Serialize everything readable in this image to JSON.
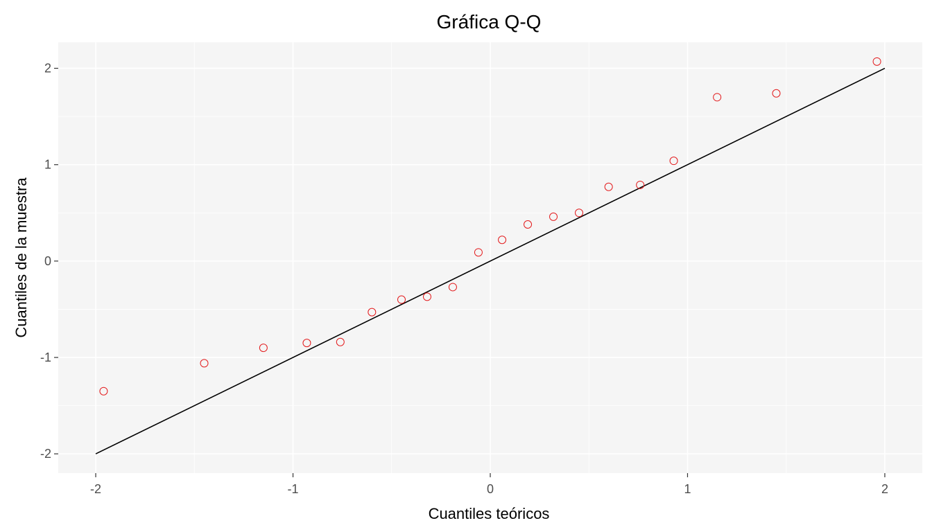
{
  "chart_data": {
    "type": "scatter",
    "title": "Gráfica Q-Q",
    "xlabel": "Cuantiles teóricos",
    "ylabel": "Cuantiles de la muestra",
    "xlim": [
      -2.19,
      2.19
    ],
    "ylim": [
      -2.2,
      2.27
    ],
    "x_ticks": [
      -2,
      -1,
      0,
      1,
      2
    ],
    "x_tick_labels": [
      "-2",
      "-1",
      "0",
      "1",
      "2"
    ],
    "y_ticks": [
      -2,
      -1,
      0,
      1,
      2
    ],
    "y_tick_labels": [
      "-2",
      "-1",
      "0",
      "1",
      "2"
    ],
    "grid": true,
    "colors": {
      "panel_background": "#f5f5f5",
      "grid": "#ffffff",
      "points": "#e31a1c",
      "reference_line": "#000000"
    },
    "points": {
      "x": [
        -1.96,
        -1.45,
        -1.15,
        -0.93,
        -0.76,
        -0.6,
        -0.45,
        -0.32,
        -0.19,
        -0.06,
        0.06,
        0.19,
        0.32,
        0.45,
        0.6,
        0.76,
        0.93,
        1.15,
        1.45,
        1.96
      ],
      "y": [
        -1.35,
        -1.06,
        -0.9,
        -0.85,
        -0.84,
        -0.53,
        -0.4,
        -0.37,
        -0.27,
        0.09,
        0.22,
        0.38,
        0.46,
        0.5,
        0.77,
        0.79,
        1.04,
        1.7,
        1.74,
        2.07
      ]
    },
    "reference_line": {
      "x": [
        -2,
        2
      ],
      "y": [
        -2,
        2
      ]
    }
  }
}
